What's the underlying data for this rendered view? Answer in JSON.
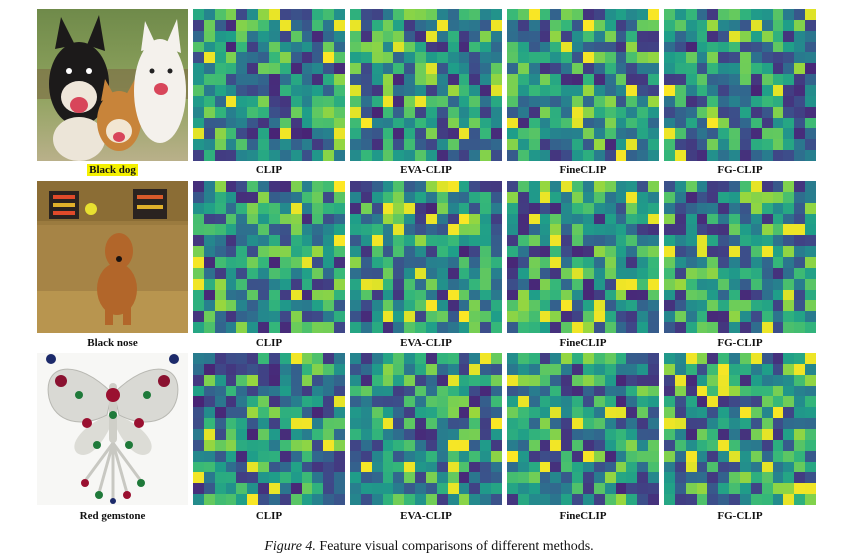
{
  "figure": {
    "caption_label": "Figure 4.",
    "caption_text": " Feature visual comparisons of different methods.",
    "rows": [
      {
        "query": "Black dog",
        "query_highlighted": true,
        "photo": "three-dogs-photo",
        "methods": [
          "CLIP",
          "EVA-CLIP",
          "FineCLIP",
          "FG-CLIP"
        ]
      },
      {
        "query": "Black nose",
        "query_highlighted": false,
        "photo": "dog-on-couch-photo",
        "methods": [
          "CLIP",
          "EVA-CLIP",
          "FineCLIP",
          "FG-CLIP"
        ]
      },
      {
        "query": "Red gemstone",
        "query_highlighted": false,
        "photo": "butterfly-brooch-photo",
        "methods": [
          "CLIP",
          "EVA-CLIP",
          "FineCLIP",
          "FG-CLIP"
        ]
      }
    ],
    "colormap": "viridis",
    "grid_size": 14
  }
}
